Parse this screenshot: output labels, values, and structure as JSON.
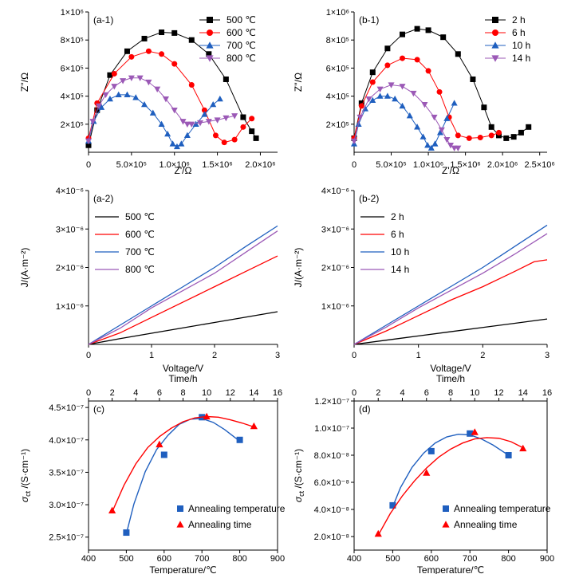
{
  "chart_data": [
    {
      "id": "a1",
      "type": "scatter",
      "panel_label": "(a-1)",
      "xlabel": "Z'/Ω",
      "ylabel": "Z''/Ω",
      "xlim": [
        0,
        2200000
      ],
      "ylim": [
        0,
        1000000
      ],
      "xticks": [
        0,
        500000,
        1000000,
        1500000,
        2000000
      ],
      "xtick_labels": [
        "0",
        "5.0×10⁵",
        "1.0×10⁶",
        "1.5×10⁶",
        "2.0×10⁶"
      ],
      "yticks": [
        200000,
        400000,
        600000,
        800000,
        1000000
      ],
      "ytick_labels": [
        "2×10⁵",
        "4×10⁵",
        "6×10⁵",
        "8×10⁵",
        "1×10⁶"
      ],
      "legend_position": "top-right",
      "series": [
        {
          "name": "500 ℃",
          "color": "#000000",
          "marker": "square",
          "x": [
            0,
            100000,
            250000,
            450000,
            650000,
            850000,
            1000000,
            1200000,
            1400000,
            1600000,
            1800000,
            1900000,
            1950000
          ],
          "y": [
            50000,
            300000,
            550000,
            720000,
            810000,
            855000,
            850000,
            800000,
            700000,
            520000,
            250000,
            150000,
            100000
          ]
        },
        {
          "name": "600 ℃",
          "color": "#ff0000",
          "marker": "circle",
          "x": [
            0,
            100000,
            300000,
            500000,
            700000,
            850000,
            1000000,
            1200000,
            1350000,
            1480000,
            1580000,
            1700000,
            1800000,
            1900000
          ],
          "y": [
            100000,
            350000,
            560000,
            680000,
            720000,
            700000,
            630000,
            480000,
            300000,
            120000,
            70000,
            90000,
            180000,
            240000
          ]
        },
        {
          "name": "700 ℃",
          "color": "#1f5fbf",
          "marker": "triangle-up",
          "x": [
            0,
            60000,
            150000,
            250000,
            350000,
            450000,
            550000,
            650000,
            750000,
            850000,
            920000,
            980000,
            1030000,
            1080000,
            1150000,
            1250000,
            1350000,
            1450000,
            1530000
          ],
          "y": [
            80000,
            220000,
            320000,
            380000,
            410000,
            410000,
            390000,
            340000,
            280000,
            200000,
            130000,
            60000,
            40000,
            60000,
            120000,
            200000,
            270000,
            340000,
            380000
          ]
        },
        {
          "name": "800 ℃",
          "color": "#9b59b6",
          "marker": "triangle-down",
          "x": [
            0,
            50000,
            120000,
            200000,
            300000,
            400000,
            500000,
            600000,
            700000,
            800000,
            900000,
            1000000,
            1100000,
            1150000,
            1200000,
            1300000,
            1400000,
            1500000,
            1600000,
            1700000
          ],
          "y": [
            80000,
            220000,
            330000,
            410000,
            470000,
            510000,
            530000,
            530000,
            500000,
            450000,
            380000,
            300000,
            220000,
            200000,
            200000,
            210000,
            220000,
            230000,
            245000,
            260000
          ]
        }
      ]
    },
    {
      "id": "b1",
      "type": "scatter",
      "panel_label": "(b-1)",
      "xlabel": "Z'/Ω",
      "ylabel": "Z''/Ω",
      "xlim": [
        0,
        2600000
      ],
      "ylim": [
        0,
        1000000
      ],
      "xticks": [
        0,
        500000,
        1000000,
        1500000,
        2000000,
        2500000
      ],
      "xtick_labels": [
        "0",
        "5.0×10⁵",
        "1.0×10⁶",
        "1.5×10⁶",
        "2.0×10⁶",
        "2.5×10⁶"
      ],
      "yticks": [
        200000,
        400000,
        600000,
        800000,
        1000000
      ],
      "ytick_labels": [
        "2×10⁵",
        "4×10⁵",
        "6×10⁵",
        "8×10⁵",
        "1×10⁶"
      ],
      "legend_position": "top-right",
      "series": [
        {
          "name": "2 h",
          "color": "#000000",
          "marker": "square",
          "x": [
            0,
            100000,
            250000,
            450000,
            650000,
            850000,
            1000000,
            1200000,
            1400000,
            1600000,
            1750000,
            1850000,
            1950000,
            2050000,
            2150000,
            2250000,
            2350000
          ],
          "y": [
            100000,
            350000,
            570000,
            740000,
            840000,
            880000,
            870000,
            820000,
            700000,
            520000,
            320000,
            180000,
            120000,
            100000,
            110000,
            140000,
            180000
          ]
        },
        {
          "name": "6 h",
          "color": "#ff0000",
          "marker": "circle",
          "x": [
            0,
            100000,
            250000,
            450000,
            650000,
            850000,
            1000000,
            1150000,
            1280000,
            1400000,
            1550000,
            1700000,
            1850000,
            1950000
          ],
          "y": [
            100000,
            330000,
            500000,
            620000,
            670000,
            660000,
            580000,
            430000,
            250000,
            120000,
            100000,
            105000,
            120000,
            140000
          ]
        },
        {
          "name": "10 h",
          "color": "#1f5fbf",
          "marker": "triangle-up",
          "x": [
            0,
            60000,
            150000,
            250000,
            350000,
            450000,
            550000,
            650000,
            750000,
            850000,
            930000,
            990000,
            1040000,
            1090000,
            1160000,
            1250000,
            1350000
          ],
          "y": [
            60000,
            200000,
            310000,
            370000,
            400000,
            400000,
            380000,
            330000,
            260000,
            180000,
            110000,
            50000,
            30000,
            60000,
            140000,
            240000,
            350000
          ]
        },
        {
          "name": "14 h",
          "color": "#9b59b6",
          "marker": "triangle-down",
          "x": [
            0,
            80000,
            200000,
            350000,
            500000,
            650000,
            800000,
            950000,
            1080000,
            1180000,
            1250000,
            1300000,
            1350000,
            1400000
          ],
          "y": [
            80000,
            250000,
            380000,
            450000,
            480000,
            470000,
            420000,
            340000,
            250000,
            160000,
            90000,
            50000,
            30000,
            30000
          ]
        }
      ]
    },
    {
      "id": "a2",
      "type": "line",
      "panel_label": "(a-2)",
      "xlabel": "Voltage/V",
      "ylabel": "J/(A·m⁻²)",
      "xlim": [
        0,
        3
      ],
      "ylim": [
        0,
        4e-06
      ],
      "xticks": [
        0,
        1,
        2,
        3
      ],
      "xtick_labels": [
        "0",
        "1",
        "2",
        "3"
      ],
      "yticks": [
        1e-06,
        2e-06,
        3e-06,
        4e-06
      ],
      "ytick_labels": [
        "1×10⁻⁶",
        "2×10⁻⁶",
        "3×10⁻⁶",
        "4×10⁻⁶"
      ],
      "legend_position": "top-left",
      "series": [
        {
          "name": "500 ℃",
          "color": "#000000",
          "x": [
            0,
            0.5,
            1,
            1.5,
            2,
            2.5,
            3
          ],
          "y": [
            0,
            1.5e-07,
            2.9e-07,
            4.3e-07,
            5.7e-07,
            7.1e-07,
            8.5e-07
          ]
        },
        {
          "name": "600 ℃",
          "color": "#ff0000",
          "x": [
            0,
            0.5,
            1,
            1.5,
            2,
            2.5,
            3
          ],
          "y": [
            0,
            3e-07,
            7e-07,
            1.1e-06,
            1.5e-06,
            1.9e-06,
            2.3e-06
          ]
        },
        {
          "name": "700 ℃",
          "color": "#1f5fbf",
          "x": [
            0,
            0.5,
            1,
            1.5,
            2,
            2.5,
            3
          ],
          "y": [
            0,
            5e-07,
            1e-06,
            1.5e-06,
            2e-06,
            2.55e-06,
            3.08e-06
          ]
        },
        {
          "name": "800 ℃",
          "color": "#9b59b6",
          "x": [
            0,
            0.5,
            1,
            1.5,
            2,
            2.5,
            3
          ],
          "y": [
            0,
            4.2e-07,
            9.5e-07,
            1.4e-06,
            1.85e-06,
            2.4e-06,
            2.95e-06
          ]
        }
      ]
    },
    {
      "id": "b2",
      "type": "line",
      "panel_label": "(b-2)",
      "xlabel": "Voltage/V",
      "ylabel": "J/(A·m⁻²)",
      "xlim": [
        0,
        3
      ],
      "ylim": [
        0,
        4e-06
      ],
      "xticks": [
        0,
        1,
        2,
        3
      ],
      "xtick_labels": [
        "0",
        "1",
        "2",
        "3"
      ],
      "yticks": [
        1e-06,
        2e-06,
        3e-06,
        4e-06
      ],
      "ytick_labels": [
        "1×10⁻⁶",
        "2×10⁻⁶",
        "3×10⁻⁶",
        "4×10⁻⁶"
      ],
      "legend_position": "top-left",
      "series": [
        {
          "name": "2 h",
          "color": "#000000",
          "x": [
            0,
            0.5,
            1,
            1.5,
            2,
            2.5,
            3
          ],
          "y": [
            0,
            1.1e-07,
            2.2e-07,
            3.3e-07,
            4.4e-07,
            5.5e-07,
            6.6e-07
          ]
        },
        {
          "name": "6 h",
          "color": "#ff0000",
          "x": [
            0,
            0.5,
            1,
            1.5,
            2,
            2.5,
            2.8,
            3
          ],
          "y": [
            0,
            3.5e-07,
            7.5e-07,
            1.15e-06,
            1.5e-06,
            1.9e-06,
            2.15e-06,
            2.2e-06
          ]
        },
        {
          "name": "10 h",
          "color": "#1f5fbf",
          "x": [
            0,
            0.5,
            1,
            1.5,
            2,
            2.5,
            3
          ],
          "y": [
            0,
            5e-07,
            1e-06,
            1.5e-06,
            2e-06,
            2.55e-06,
            3.1e-06
          ]
        },
        {
          "name": "14 h",
          "color": "#9b59b6",
          "x": [
            0,
            0.5,
            1,
            1.5,
            2,
            2.5,
            3
          ],
          "y": [
            0,
            4.5e-07,
            9.5e-07,
            1.4e-06,
            1.85e-06,
            2.35e-06,
            2.88e-06
          ]
        }
      ]
    },
    {
      "id": "c",
      "type": "scatter",
      "panel_label": "(c)",
      "xlabel": "Temperature/℃",
      "x2label": "Time/h",
      "ylabel": "σct /(S·cm⁻¹)",
      "ylabel_main": "σ",
      "ylabel_sub": "ct",
      "ylabel_rest": " /(S·cm⁻¹)",
      "xlim": [
        400,
        900
      ],
      "x2lim": [
        0,
        16
      ],
      "ylim": [
        2.3e-07,
        4.6e-07
      ],
      "xticks": [
        400,
        500,
        600,
        700,
        800,
        900
      ],
      "xtick_labels": [
        "400",
        "500",
        "600",
        "700",
        "800",
        "900"
      ],
      "x2ticks": [
        0,
        2,
        4,
        6,
        8,
        10,
        12,
        14,
        16
      ],
      "x2tick_labels": [
        "0",
        "2",
        "4",
        "6",
        "8",
        "10",
        "12",
        "14",
        "16"
      ],
      "yticks": [
        2.5e-07,
        3e-07,
        3.5e-07,
        4e-07,
        4.5e-07
      ],
      "ytick_labels": [
        "2.5×10⁻⁷",
        "3.0×10⁻⁷",
        "3.5×10⁻⁷",
        "4.0×10⁻⁷",
        "4.5×10⁻⁷"
      ],
      "legend_position": "bottom-right",
      "series": [
        {
          "name": "Annealing temperature",
          "color": "#1f5fbf",
          "marker": "square",
          "axis": "bottom",
          "x": [
            500,
            600,
            700,
            800
          ],
          "y": [
            2.57e-07,
            3.77e-07,
            4.35e-07,
            4e-07
          ],
          "fit_x": [
            500,
            520,
            550,
            580,
            610,
            640,
            670,
            700,
            730,
            760,
            800
          ],
          "fit_y": [
            2.55e-07,
            3.01e-07,
            3.51e-07,
            3.85e-07,
            4.07e-07,
            4.24e-07,
            4.32e-07,
            4.33e-07,
            4.27e-07,
            4.16e-07,
            3.98e-07
          ]
        },
        {
          "name": "Annealing time",
          "color": "#ff0000",
          "marker": "triangle-up",
          "axis": "top",
          "x": [
            2,
            6,
            10,
            14
          ],
          "y": [
            2.91e-07,
            3.93e-07,
            4.36e-07,
            4.21e-07
          ],
          "fit_x": [
            2,
            3,
            4,
            5,
            6,
            7,
            8,
            9,
            10,
            11,
            12,
            13,
            14
          ],
          "fit_y": [
            2.89e-07,
            3.3e-07,
            3.63e-07,
            3.88e-07,
            4.05e-07,
            4.18e-07,
            4.28e-07,
            4.34e-07,
            4.36e-07,
            4.35e-07,
            4.31e-07,
            4.26e-07,
            4.2e-07
          ]
        }
      ]
    },
    {
      "id": "d",
      "type": "scatter",
      "panel_label": "(d)",
      "xlabel": "Temperature/℃",
      "x2label": "Time/h",
      "ylabel": "σct /(S·cm⁻¹)",
      "ylabel_main": "σ",
      "ylabel_sub": "ct",
      "ylabel_rest": " /(S·cm⁻¹)",
      "xlim": [
        400,
        900
      ],
      "x2lim": [
        0,
        16
      ],
      "ylim": [
        1e-08,
        1.2e-07
      ],
      "xticks": [
        400,
        500,
        600,
        700,
        800,
        900
      ],
      "xtick_labels": [
        "400",
        "500",
        "600",
        "700",
        "800",
        "900"
      ],
      "x2ticks": [
        0,
        2,
        4,
        6,
        8,
        10,
        12,
        14,
        16
      ],
      "x2tick_labels": [
        "0",
        "2",
        "4",
        "6",
        "8",
        "10",
        "12",
        "14",
        "16"
      ],
      "yticks": [
        2e-08,
        4e-08,
        6e-08,
        8e-08,
        1e-07,
        1.2e-07
      ],
      "ytick_labels": [
        "2.0×10⁻⁸",
        "4.0×10⁻⁸",
        "6.0×10⁻⁸",
        "8.0×10⁻⁸",
        "1.0×10⁻⁷",
        "1.2×10⁻⁷"
      ],
      "legend_position": "bottom-right",
      "series": [
        {
          "name": "Annealing temperature",
          "color": "#1f5fbf",
          "marker": "square",
          "axis": "bottom",
          "x": [
            500,
            600,
            700,
            800
          ],
          "y": [
            4.3e-08,
            8.3e-08,
            9.6e-08,
            8e-08
          ],
          "fit_x": [
            500,
            520,
            550,
            580,
            610,
            640,
            670,
            700,
            730,
            760,
            800
          ],
          "fit_y": [
            4.2e-08,
            5.6e-08,
            7.1e-08,
            8.15e-08,
            8.9e-08,
            9.35e-08,
            9.55e-08,
            9.5e-08,
            9.2e-08,
            8.75e-08,
            8e-08
          ]
        },
        {
          "name": "Annealing time",
          "color": "#ff0000",
          "marker": "triangle-up",
          "axis": "top",
          "x": [
            2,
            6,
            10,
            14
          ],
          "y": [
            2.2e-08,
            6.7e-08,
            9.7e-08,
            8.5e-08
          ],
          "fit_x": [
            2,
            3,
            4,
            5,
            6,
            7,
            8,
            9,
            10,
            11,
            12,
            13,
            14
          ],
          "fit_y": [
            2.1e-08,
            3.7e-08,
            5e-08,
            6.1e-08,
            7.05e-08,
            7.85e-08,
            8.45e-08,
            8.9e-08,
            9.2e-08,
            9.3e-08,
            9.25e-08,
            9e-08,
            8.55e-08
          ]
        }
      ]
    }
  ]
}
